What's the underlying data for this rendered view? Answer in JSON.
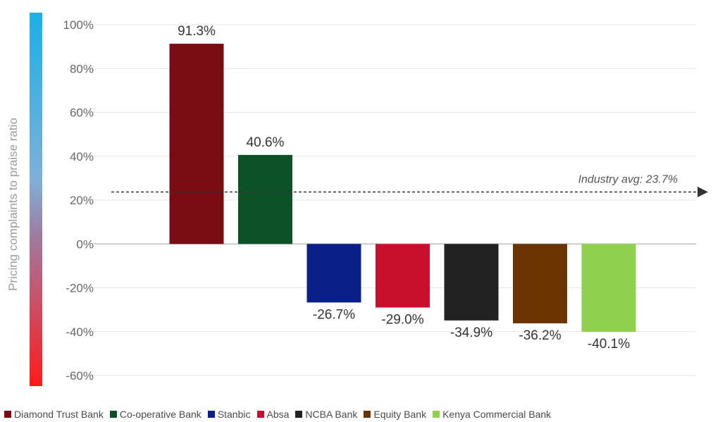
{
  "chart_data": {
    "type": "bar",
    "categories": [
      "Diamond Trust Bank",
      "Co-operative Bank",
      "Stanbic",
      "Absa",
      "NCBA Bank",
      "Equity Bank",
      "Kenya Commercial Bank"
    ],
    "values": [
      91.3,
      40.6,
      -26.7,
      -29.0,
      -34.9,
      -36.2,
      -40.1
    ],
    "value_labels": [
      "91.3%",
      "40.6%",
      "-26.7%",
      "-29.0%",
      "-34.9%",
      "-36.2%",
      "-40.1%"
    ],
    "colors": [
      "#7b0c14",
      "#0d5226",
      "#0b1f8a",
      "#c8102e",
      "#222222",
      "#6b3300",
      "#8fd14f"
    ],
    "ylabel": "Pricing complaints to praise ratio",
    "ylim": [
      -60,
      100
    ],
    "yticks": [
      100,
      80,
      60,
      40,
      20,
      0,
      -20,
      -40,
      -60
    ],
    "ytick_labels": [
      "100%",
      "80%",
      "60%",
      "40%",
      "20%",
      "0%",
      "-20%",
      "-40%",
      "-60%"
    ],
    "grid": true,
    "legend_position": "bottom",
    "reference_line": {
      "value": 23.7,
      "label": "Industry avg: 23.7%"
    },
    "axis_gradient": [
      "#1ab0e8",
      "#ff1a1a"
    ]
  }
}
